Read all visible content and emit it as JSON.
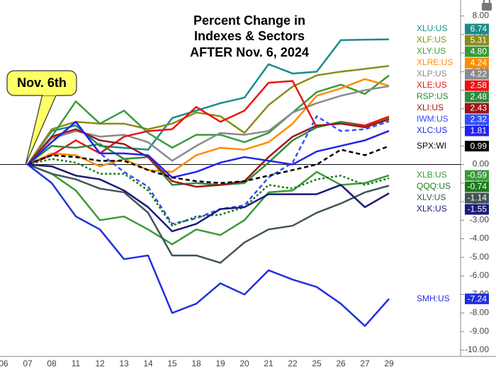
{
  "chart_data": {
    "type": "line",
    "title": [
      "Percent Change in",
      "Indexes & Sectors",
      "AFTER Nov. 6, 2024"
    ],
    "annotation": "Nov. 6th",
    "categories": [
      "06",
      "07",
      "08",
      "11",
      "12",
      "13",
      "14",
      "15",
      "18",
      "19",
      "20",
      "21",
      "22",
      "25",
      "26",
      "27",
      "29"
    ],
    "ylim": [
      -10.34,
      8.86
    ],
    "yticks": [
      {
        "value": 8,
        "label": "8.00"
      },
      {
        "value": 7,
        "label": "7.00"
      },
      {
        "value": 6,
        "label": "6.00"
      },
      {
        "value": 5,
        "label": "5.00"
      },
      {
        "value": 4,
        "label": "4.00"
      },
      {
        "value": 3,
        "label": "3.00"
      },
      {
        "value": 2,
        "label": "2.00"
      },
      {
        "value": 1,
        "label": "1.00"
      },
      {
        "value": 0,
        "label": "0.00"
      },
      {
        "value": -1,
        "label": "-1.00"
      },
      {
        "value": -2,
        "label": "-2.00"
      },
      {
        "value": -3,
        "label": "-3.00"
      },
      {
        "value": -4,
        "label": "-4.00"
      },
      {
        "value": -5,
        "label": "-5.00"
      },
      {
        "value": -6,
        "label": "-6.00"
      },
      {
        "value": -7,
        "label": "-7.00"
      },
      {
        "value": -8,
        "label": "-8.00"
      },
      {
        "value": -9,
        "label": "-9.00"
      },
      {
        "value": -10,
        "label": "-10.00"
      }
    ],
    "series": [
      {
        "name": "XLU:US",
        "color": "#1b8b8b",
        "style": "solid",
        "values": [
          null,
          0,
          1.8,
          2.1,
          1.0,
          0.9,
          0.8,
          2.5,
          2.9,
          3.3,
          3.6,
          5.4,
          4.9,
          5.0,
          6.7,
          6.72,
          6.74
        ],
        "value_labels": [
          null,
          null,
          null,
          null,
          null,
          null,
          null,
          null,
          null,
          null,
          null,
          null,
          null,
          null,
          null,
          null,
          "6.74"
        ]
      },
      {
        "name": "XLF:US",
        "color": "#8b8b1a",
        "style": "solid",
        "values": [
          null,
          0,
          1.9,
          2.3,
          2.2,
          2.2,
          1.9,
          2.2,
          2.8,
          2.6,
          1.7,
          3.2,
          4.2,
          4.8,
          5.0,
          5.15,
          5.31
        ],
        "value_labels": [
          null,
          null,
          null,
          null,
          null,
          null,
          null,
          null,
          null,
          null,
          null,
          null,
          null,
          null,
          null,
          null,
          "5.31"
        ]
      },
      {
        "name": "XLY:US",
        "color": "#3a9a3a",
        "style": "solid",
        "values": [
          null,
          0,
          1.5,
          3.4,
          2.2,
          2.9,
          1.7,
          0.9,
          1.6,
          1.6,
          1.2,
          1.7,
          2.8,
          3.9,
          4.3,
          3.8,
          4.8
        ],
        "value_labels": [
          null,
          null,
          null,
          null,
          null,
          null,
          null,
          null,
          null,
          null,
          null,
          null,
          null,
          null,
          null,
          null,
          "4.80"
        ]
      },
      {
        "name": "XLRE:US",
        "color": "#ff8c00",
        "style": "solid",
        "values": [
          null,
          0,
          0.6,
          0.5,
          -0.1,
          0.3,
          -0.3,
          -0.4,
          0.5,
          0.9,
          0.8,
          1.2,
          2.2,
          3.7,
          4.1,
          4.6,
          4.24
        ],
        "value_labels": [
          null,
          null,
          null,
          null,
          null,
          null,
          null,
          null,
          null,
          null,
          null,
          null,
          null,
          null,
          null,
          null,
          "4.24"
        ]
      },
      {
        "name": "XLP:US",
        "color": "#8a8a8a",
        "style": "solid",
        "values": [
          null,
          0,
          1.4,
          1.8,
          1.5,
          1.6,
          1.2,
          0.2,
          1.0,
          1.7,
          1.6,
          1.8,
          2.8,
          3.3,
          3.7,
          4.0,
          4.22
        ],
        "value_labels": [
          null,
          null,
          null,
          null,
          null,
          null,
          null,
          null,
          null,
          null,
          null,
          null,
          null,
          null,
          null,
          null,
          "4.22"
        ]
      },
      {
        "name": "XLE:US",
        "color": "#ee1111",
        "style": "solid",
        "values": [
          null,
          0,
          0.5,
          1.3,
          0.6,
          1.5,
          1.8,
          1.9,
          3.1,
          2.3,
          2.9,
          4.4,
          4.5,
          2.0,
          2.3,
          2.1,
          2.58
        ],
        "value_labels": [
          null,
          null,
          null,
          null,
          null,
          null,
          null,
          null,
          null,
          null,
          null,
          null,
          null,
          null,
          null,
          null,
          "2.58"
        ]
      },
      {
        "name": "RSP:US",
        "color": "#2e8b3e",
        "style": "solid",
        "values": [
          null,
          0,
          1.0,
          0.9,
          1.1,
          0.3,
          0.4,
          -1.1,
          -1.0,
          -1.1,
          -1.0,
          0.1,
          1.3,
          2.0,
          2.3,
          2.0,
          2.48
        ],
        "value_labels": [
          null,
          null,
          null,
          null,
          null,
          null,
          null,
          null,
          null,
          null,
          null,
          null,
          null,
          null,
          null,
          null,
          "2.48"
        ]
      },
      {
        "name": "XLI:US",
        "color": "#a01515",
        "style": "solid",
        "values": [
          null,
          0,
          1.5,
          1.9,
          1.3,
          1.1,
          0.4,
          -0.9,
          -1.2,
          -1.1,
          -0.9,
          0.4,
          1.5,
          2.1,
          2.2,
          2.0,
          2.43
        ],
        "value_labels": [
          null,
          null,
          null,
          null,
          null,
          null,
          null,
          null,
          null,
          null,
          null,
          null,
          null,
          null,
          null,
          null,
          "2.43"
        ]
      },
      {
        "name": "IWM:US",
        "color": "#3050ff",
        "style": "dashed",
        "values": [
          null,
          0,
          1.2,
          2.3,
          0.6,
          -0.4,
          -1.2,
          -3.2,
          -2.9,
          -2.4,
          -2.2,
          -0.7,
          0.1,
          2.6,
          1.8,
          1.9,
          2.32
        ],
        "value_labels": [
          null,
          null,
          null,
          null,
          null,
          null,
          null,
          null,
          null,
          null,
          null,
          null,
          null,
          null,
          null,
          null,
          "2.32"
        ]
      },
      {
        "name": "XLC:US",
        "color": "#2222ee",
        "style": "solid",
        "values": [
          null,
          0,
          1.2,
          2.3,
          0.6,
          0.6,
          0.5,
          -0.7,
          -0.4,
          0.1,
          0.4,
          0.2,
          0.0,
          0.7,
          1.0,
          1.3,
          1.81
        ],
        "value_labels": [
          null,
          null,
          null,
          null,
          null,
          null,
          null,
          null,
          null,
          null,
          null,
          null,
          null,
          null,
          null,
          null,
          "1.81"
        ]
      },
      {
        "name": "SPX:WI",
        "color": "#000000",
        "style": "dashed",
        "values": [
          null,
          0,
          0.5,
          0.4,
          0.2,
          0.2,
          -0.3,
          -0.7,
          -0.9,
          -1.0,
          -0.9,
          -0.6,
          -0.3,
          0.0,
          0.8,
          0.5,
          0.99
        ],
        "value_labels": [
          null,
          null,
          null,
          null,
          null,
          null,
          null,
          null,
          null,
          null,
          null,
          null,
          null,
          null,
          null,
          null,
          "0.99"
        ]
      },
      {
        "name": "XLB:US",
        "color": "#3a9a3a",
        "style": "solid",
        "values": [
          null,
          0,
          -0.5,
          -1.4,
          -3.0,
          -2.8,
          -3.5,
          -4.3,
          -3.5,
          -3.8,
          -3.0,
          -1.5,
          -1.4,
          -0.4,
          -1.1,
          -1.0,
          -0.59
        ],
        "value_labels": [
          null,
          null,
          null,
          null,
          null,
          null,
          null,
          null,
          null,
          null,
          null,
          null,
          null,
          null,
          null,
          null,
          "-0.59"
        ]
      },
      {
        "name": "QQQ:US",
        "color": "#1a7a1a",
        "style": "dotted",
        "values": [
          null,
          0,
          0.3,
          0.1,
          -0.5,
          -0.5,
          -1.4,
          -3.3,
          -2.8,
          -2.7,
          -2.3,
          -1.1,
          -1.3,
          -0.8,
          -0.6,
          -1.1,
          -0.74
        ],
        "value_labels": [
          null,
          null,
          null,
          null,
          null,
          null,
          null,
          null,
          null,
          null,
          null,
          null,
          null,
          null,
          null,
          null,
          "-0.74"
        ]
      },
      {
        "name": "XLV:US",
        "color": "#405555",
        "style": "solid",
        "values": [
          null,
          0,
          -0.5,
          -0.8,
          -1.3,
          -1.5,
          -2.6,
          -4.9,
          -4.9,
          -5.3,
          -4.2,
          -3.5,
          -3.3,
          -2.6,
          -2.1,
          -1.5,
          -1.14
        ],
        "value_labels": [
          null,
          null,
          null,
          null,
          null,
          null,
          null,
          null,
          null,
          null,
          null,
          null,
          null,
          null,
          null,
          null,
          "-1.14"
        ]
      },
      {
        "name": "XLK:US",
        "color": "#1a1a7a",
        "style": "solid",
        "values": [
          null,
          0,
          -0.1,
          -0.6,
          -0.8,
          -1.4,
          -2.3,
          -3.6,
          -3.2,
          -2.4,
          -2.3,
          -1.6,
          -1.6,
          -1.6,
          -1.1,
          -2.3,
          -1.55
        ],
        "value_labels": [
          null,
          null,
          null,
          null,
          null,
          null,
          null,
          null,
          null,
          null,
          null,
          null,
          null,
          null,
          null,
          null,
          "-1.55"
        ]
      },
      {
        "name": "SMH:US",
        "color": "#2030e0",
        "style": "solid",
        "values": [
          null,
          0,
          -1.0,
          -2.8,
          -3.5,
          -5.1,
          -4.9,
          -8.0,
          -7.5,
          -6.4,
          -7.0,
          -5.7,
          -6.2,
          -6.6,
          -7.5,
          -8.7,
          -7.24
        ],
        "value_labels": [
          null,
          null,
          null,
          null,
          null,
          null,
          null,
          null,
          null,
          null,
          null,
          null,
          null,
          null,
          null,
          null,
          "-7.24"
        ]
      }
    ]
  }
}
